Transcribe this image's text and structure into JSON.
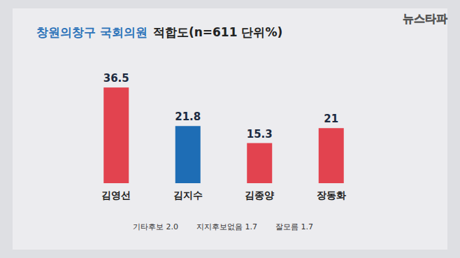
{
  "chart_data": {
    "type": "bar",
    "title": "창원의창구 국회의원",
    "subtitle": "적합도(n=611 단위%)",
    "categories": [
      "김영선",
      "김지수",
      "김종양",
      "장동화"
    ],
    "values": [
      36.5,
      21.8,
      15.3,
      21.0
    ],
    "colors": [
      "#e2434f",
      "#1e6db5",
      "#e2434f",
      "#e2434f"
    ],
    "ylim": [
      0,
      40
    ],
    "data_labels": true,
    "tick_labels": "x",
    "grid": false,
    "annotations": [
      "기타후보 2.0",
      "지지후보없음 1.7",
      "잘모름 1.7"
    ],
    "source": "뉴스타파"
  }
}
